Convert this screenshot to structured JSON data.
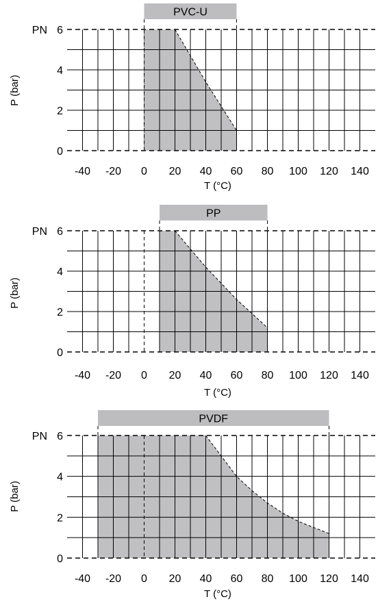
{
  "chart_data": [
    {
      "type": "area",
      "material": "PVC-U",
      "xlabel": "T (°C)",
      "ylabel": "P (bar)",
      "pn_label": "PN",
      "x_ticks": [
        "-40",
        "-20",
        "0",
        "20",
        "40",
        "60",
        "80",
        "100",
        "120",
        "140"
      ],
      "y_ticks": [
        "6",
        "4",
        "2",
        "0"
      ],
      "xlim": [
        -50,
        150
      ],
      "ylim": [
        0,
        6
      ],
      "range": [
        0,
        60
      ],
      "points": [
        [
          0,
          0
        ],
        [
          0,
          6
        ],
        [
          20,
          6
        ],
        [
          30,
          4.7
        ],
        [
          40,
          3.4
        ],
        [
          50,
          2.2
        ],
        [
          60,
          1
        ]
      ],
      "fill_color": "#c0c0c3",
      "bar_color": "#bdbdbf"
    },
    {
      "type": "area",
      "material": "PP",
      "xlabel": "T (°C)",
      "ylabel": "P (bar)",
      "pn_label": "PN",
      "x_ticks": [
        "-40",
        "-20",
        "0",
        "20",
        "40",
        "60",
        "80",
        "100",
        "120",
        "140"
      ],
      "y_ticks": [
        "6",
        "4",
        "2",
        "0"
      ],
      "xlim": [
        -50,
        150
      ],
      "ylim": [
        0,
        6
      ],
      "range": [
        10,
        80
      ],
      "points": [
        [
          10,
          0
        ],
        [
          10,
          6
        ],
        [
          20,
          6
        ],
        [
          30,
          5.1
        ],
        [
          40,
          4.2
        ],
        [
          50,
          3.4
        ],
        [
          60,
          2.6
        ],
        [
          70,
          1.9
        ],
        [
          80,
          1.2
        ]
      ],
      "fill_color": "#c0c0c3",
      "bar_color": "#bdbdbf"
    },
    {
      "type": "area",
      "material": "PVDF",
      "xlabel": "T (°C)",
      "ylabel": "P (bar)",
      "pn_label": "PN",
      "x_ticks": [
        "-40",
        "-20",
        "0",
        "20",
        "40",
        "60",
        "80",
        "100",
        "120",
        "140"
      ],
      "y_ticks": [
        "6",
        "4",
        "2",
        "0"
      ],
      "xlim": [
        -50,
        150
      ],
      "ylim": [
        0,
        6
      ],
      "range": [
        -30,
        120
      ],
      "points": [
        [
          -30,
          0
        ],
        [
          -30,
          6
        ],
        [
          40,
          6
        ],
        [
          50,
          5
        ],
        [
          60,
          4
        ],
        [
          70,
          3.3
        ],
        [
          80,
          2.7
        ],
        [
          90,
          2.2
        ],
        [
          100,
          1.8
        ],
        [
          110,
          1.5
        ],
        [
          120,
          1.2
        ]
      ],
      "fill_color": "#c0c0c3",
      "bar_color": "#bdbdbf"
    }
  ]
}
